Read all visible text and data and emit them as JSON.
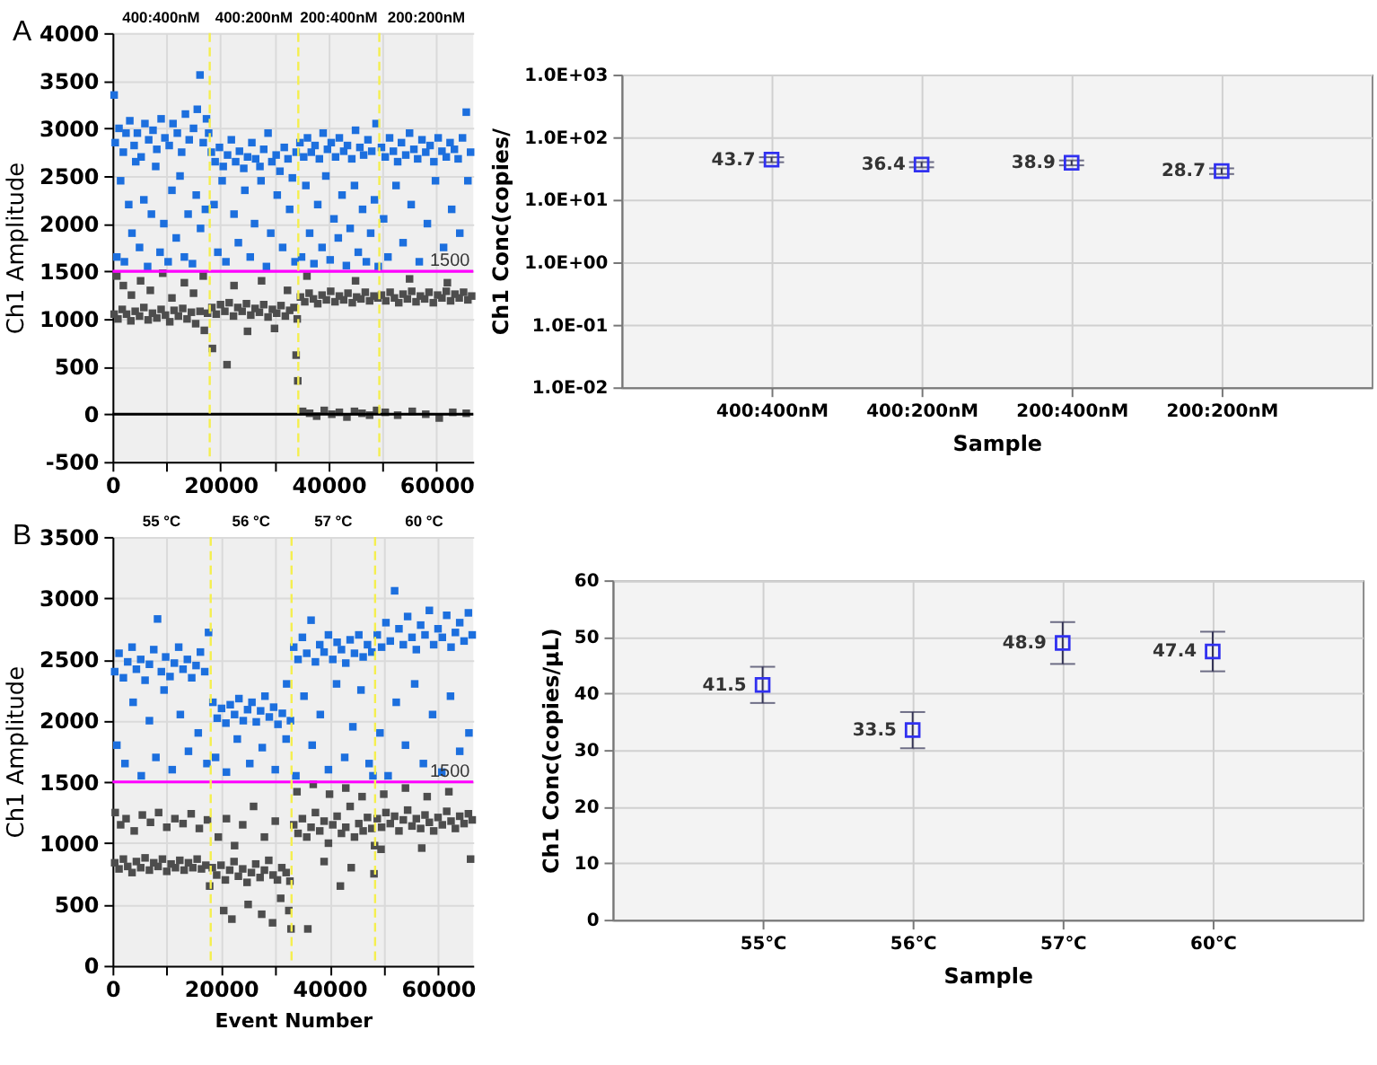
{
  "chart_data": [
    {
      "type": "scatter",
      "annotations": [
        "A",
        "400:400nM",
        "400:200nM",
        "200:400nM",
        "200:200nM"
      ],
      "ylabel": "Ch1 Amplitude",
      "xlim": [
        0,
        66800
      ],
      "xticks": [
        0,
        {
          "value": 10000,
          "label": null
        },
        20000,
        {
          "value": 30000,
          "label": null
        },
        40000,
        {
          "value": 50000,
          "label": null
        },
        60000
      ],
      "ylim": [
        -500,
        4000
      ],
      "yticks": [
        -500,
        0,
        500,
        1000,
        1500,
        2000,
        2500,
        3000,
        3500,
        4000
      ],
      "grid": true,
      "marker": "square",
      "ref_lines": [
        {
          "axis": "y",
          "value": 0,
          "color": "#000000"
        },
        {
          "axis": "y",
          "value": 1500,
          "label": "1500",
          "color": "#ff00ff"
        },
        {
          "axis": "x",
          "value": 18000,
          "color": "#f5ef4e",
          "line_style": "dashed"
        },
        {
          "axis": "x",
          "value": 34400,
          "color": "#f5ef4e",
          "line_style": "dashed"
        },
        {
          "axis": "x",
          "value": 49400,
          "color": "#f5ef4e",
          "line_style": "dashed"
        }
      ],
      "series": [
        {
          "color": "#1c6fde",
          "x": [
            300,
            500,
            1200,
            2000,
            2500,
            3200,
            4000,
            4600,
            5300,
            6000,
            6700,
            7500,
            8200,
            9000,
            9700,
            10500,
            11200,
            12000,
            12800,
            13500,
            14200,
            15000,
            15700,
            16200,
            16800,
            17400,
            17800,
            800,
            1500,
            2200,
            3000,
            3600,
            4300,
            5000,
            5800,
            6500,
            7200,
            8000,
            8800,
            9500,
            10300,
            11000,
            11800,
            12500,
            13300,
            14000,
            14800,
            15500,
            16300,
            17200,
            18300,
            19000,
            19800,
            20500,
            21300,
            22000,
            22800,
            23500,
            24300,
            25000,
            25800,
            26500,
            27300,
            28000,
            28800,
            29500,
            30300,
            31000,
            31800,
            32500,
            33300,
            34000,
            18800,
            19500,
            20300,
            21000,
            22500,
            23300,
            24500,
            25500,
            26300,
            27500,
            28500,
            29300,
            30500,
            31500,
            32800,
            33800,
            34700,
            35400,
            36100,
            36800,
            37500,
            38300,
            39000,
            39800,
            40500,
            41300,
            42000,
            42800,
            43500,
            44300,
            45000,
            45800,
            46500,
            47300,
            48000,
            48800,
            35000,
            35800,
            36500,
            37300,
            38000,
            38800,
            39500,
            40300,
            41000,
            41800,
            42500,
            43300,
            44000,
            44800,
            45500,
            46300,
            47000,
            47800,
            48500,
            49200,
            49800,
            50500,
            51300,
            52000,
            52800,
            53500,
            54300,
            55000,
            55800,
            56500,
            57300,
            58000,
            58800,
            59500,
            60300,
            61000,
            61800,
            62500,
            63300,
            64000,
            64800,
            65500,
            66300,
            50200,
            51000,
            52500,
            53800,
            55300,
            56800,
            58300,
            59800,
            61300,
            62800,
            64300,
            65800
          ],
          "values": [
            3350,
            2850,
            3000,
            2750,
            2950,
            3080,
            2820,
            2950,
            2700,
            3050,
            2880,
            2980,
            2780,
            3100,
            2900,
            2820,
            3050,
            2950,
            2750,
            3150,
            2880,
            3000,
            3200,
            3560,
            2850,
            3100,
            2950,
            1650,
            2450,
            1600,
            2200,
            1900,
            2650,
            1750,
            2250,
            1550,
            2100,
            2600,
            1700,
            2000,
            1600,
            2350,
            1850,
            2500,
            1650,
            2100,
            1580,
            2300,
            1950,
            2150,
            2750,
            2650,
            2800,
            2600,
            2720,
            2880,
            2650,
            2760,
            2580,
            2700,
            2850,
            2680,
            2600,
            2780,
            2950,
            2650,
            2720,
            2550,
            2800,
            2680,
            2480,
            2750,
            2200,
            1700,
            2450,
            1600,
            2100,
            1800,
            2350,
            1650,
            2000,
            2450,
            1550,
            1900,
            2300,
            1750,
            2150,
            1600,
            2850,
            2700,
            2900,
            2750,
            2820,
            2680,
            2950,
            2780,
            2850,
            2700,
            2900,
            2760,
            2820,
            2680,
            2980,
            2800,
            2720,
            2880,
            2760,
            3050,
            1650,
            2400,
            1900,
            1580,
            2200,
            1750,
            2500,
            1620,
            2050,
            1850,
            2300,
            1560,
            1950,
            2400,
            1700,
            2150,
            1600,
            1900,
            2250,
            1550,
            2800,
            2700,
            2900,
            2760,
            2650,
            2850,
            2720,
            2950,
            2780,
            2680,
            2880,
            2750,
            2820,
            2650,
            2900,
            2760,
            2700,
            2850,
            2780,
            2680,
            2900,
            3170,
            2750,
            2050,
            1650,
            2400,
            1800,
            2200,
            1600,
            2000,
            2450,
            1750,
            2150,
            1900,
            2450
          ]
        },
        {
          "color": "#4d4d4d",
          "x": [
            300,
            1000,
            1800,
            2600,
            3400,
            4200,
            5000,
            5800,
            6600,
            7400,
            8200,
            9000,
            9800,
            10600,
            11400,
            12200,
            13000,
            13800,
            14600,
            15400,
            16200,
            17000,
            17600,
            800,
            2000,
            3500,
            5200,
            7000,
            9300,
            11000,
            13300,
            15000,
            16800,
            18400,
            19200,
            20000,
            20800,
            21600,
            22400,
            23200,
            24000,
            24800,
            25600,
            26400,
            27200,
            28000,
            28800,
            29600,
            30400,
            31200,
            32000,
            32800,
            33600,
            34200,
            18500,
            21200,
            22500,
            25000,
            27600,
            30000,
            32400,
            34000,
            34300,
            34800,
            35600,
            36400,
            37200,
            38000,
            38800,
            39600,
            40400,
            41200,
            42000,
            42800,
            43600,
            44400,
            45200,
            46000,
            46800,
            47600,
            48400,
            49100,
            35200,
            36500,
            37800,
            39200,
            40600,
            42000,
            43400,
            44800,
            46200,
            47600,
            48900,
            49800,
            50600,
            51400,
            52200,
            53000,
            53800,
            54600,
            55400,
            56200,
            57000,
            57800,
            58600,
            59400,
            60200,
            61000,
            61800,
            62600,
            63400,
            64200,
            65000,
            65800,
            66500,
            50500,
            52800,
            55500,
            58000,
            60500,
            63000,
            65500,
            36000,
            45000,
            55000,
            62000
          ],
          "values": [
            1050,
            1000,
            1100,
            1050,
            980,
            1080,
            1030,
            1120,
            990,
            1060,
            1010,
            1100,
            1040,
            970,
            1090,
            1030,
            1110,
            1000,
            1070,
            950,
            1080,
            880,
            1060,
            1450,
            1350,
            1250,
            1400,
            1300,
            1480,
            1220,
            1380,
            1270,
            1450,
            1120,
            1050,
            1150,
            1080,
            1170,
            1030,
            1120,
            1080,
            1160,
            1040,
            1110,
            1070,
            1150,
            1020,
            1100,
            1060,
            1140,
            1030,
            1090,
            1120,
            1000,
            690,
            520,
            1350,
            870,
            1400,
            900,
            1300,
            620,
            350,
            1230,
            1180,
            1270,
            1210,
            1160,
            1250,
            1200,
            1290,
            1180,
            1240,
            1200,
            1270,
            1170,
            1230,
            1210,
            1280,
            1190,
            1240,
            1220,
            30,
            10,
            -20,
            40,
            0,
            20,
            -30,
            30,
            10,
            -10,
            40,
            1250,
            1190,
            1280,
            1220,
            1170,
            1260,
            1210,
            1290,
            1180,
            1240,
            1210,
            1280,
            1170,
            1250,
            1220,
            1290,
            1190,
            1260,
            1220,
            1280,
            1200,
            1240,
            20,
            -10,
            30,
            0,
            -40,
            20,
            10,
            1450,
            1400,
            1420,
            1380
          ]
        }
      ]
    },
    {
      "type": "scatter",
      "categories": [
        "400:400nM",
        "400:200nM",
        "200:400nM",
        "200:200nM"
      ],
      "xlabel": "Sample",
      "ylabel": "Ch1 Conc(copies/",
      "log": true,
      "ylim": [
        0.01,
        1000
      ],
      "yticks": [
        {
          "value": 0.01,
          "label": "1.0E-02"
        },
        {
          "value": 0.1,
          "label": "1.0E-01"
        },
        {
          "value": 1,
          "label": "1.0E+00"
        },
        {
          "value": 10,
          "label": "1.0E+01"
        },
        {
          "value": 100,
          "label": "1.0E+02"
        },
        {
          "value": 1000,
          "label": "1.0E+03"
        }
      ],
      "grid": true,
      "marker": "square",
      "data_labels": true,
      "series": [
        {
          "color": "#3030f0",
          "values": [
            43.7,
            36.4,
            38.9,
            28.7
          ],
          "errors": [
            4,
            3.5,
            3.5,
            3
          ]
        }
      ]
    },
    {
      "type": "scatter",
      "annotations": [
        "B",
        "55 °C",
        "56 °C",
        "57 °C",
        "60 °C"
      ],
      "xlabel": "Event Number",
      "ylabel": "Ch1 Amplitude",
      "xlim": [
        0,
        66500
      ],
      "xticks": [
        0,
        {
          "value": 10000,
          "label": null
        },
        20000,
        {
          "value": 30000,
          "label": null
        },
        40000,
        {
          "value": 50000,
          "label": null
        },
        60000
      ],
      "ylim": [
        0,
        3500
      ],
      "yticks": [
        0,
        500,
        1000,
        1500,
        2000,
        2500,
        3000,
        3500
      ],
      "grid": true,
      "marker": "square",
      "ref_lines": [
        {
          "axis": "y",
          "value": 1500,
          "label": "1500",
          "color": "#ff00ff"
        },
        {
          "axis": "x",
          "value": 18100,
          "color": "#f5ef4e",
          "line_style": "dashed"
        },
        {
          "axis": "x",
          "value": 33000,
          "color": "#f5ef4e",
          "line_style": "dashed"
        },
        {
          "axis": "x",
          "value": 48400,
          "color": "#f5ef4e",
          "line_style": "dashed"
        }
      ],
      "series": [
        {
          "color": "#1c6fde",
          "x": [
            400,
            1200,
            2000,
            2800,
            3600,
            4400,
            5200,
            6000,
            6800,
            7600,
            8300,
            9000,
            9800,
            10600,
            11400,
            12200,
            13000,
            13800,
            14600,
            15400,
            16200,
            17000,
            17700,
            800,
            2300,
            3800,
            5300,
            6800,
            8000,
            9500,
            11000,
            12500,
            14000,
            15800,
            17400,
            18500,
            19300,
            20100,
            20900,
            21700,
            22500,
            23300,
            24100,
            24900,
            25700,
            26500,
            27300,
            28100,
            28900,
            29700,
            30500,
            31300,
            32100,
            32800,
            19000,
            21000,
            23000,
            25300,
            27600,
            30000,
            32000,
            33400,
            34200,
            35000,
            35800,
            36600,
            37400,
            38200,
            39000,
            39800,
            40600,
            41400,
            42200,
            43000,
            43800,
            44600,
            45400,
            46200,
            47000,
            47800,
            33800,
            35300,
            36800,
            38300,
            39800,
            41300,
            42800,
            44300,
            45800,
            47300,
            48000,
            48800,
            49600,
            50400,
            51200,
            52000,
            52800,
            53600,
            54400,
            55200,
            56000,
            56800,
            57600,
            58400,
            59200,
            60000,
            60800,
            61600,
            62400,
            63200,
            64000,
            64800,
            65600,
            66300,
            49300,
            50800,
            52300,
            54000,
            55700,
            57300,
            59000,
            60700,
            62300,
            64000,
            65700
          ],
          "values": [
            2400,
            2550,
            2350,
            2480,
            2600,
            2420,
            2500,
            2330,
            2460,
            2580,
            2830,
            2400,
            2520,
            2360,
            2470,
            2600,
            2420,
            2500,
            2350,
            2450,
            2560,
            2400,
            2720,
            1800,
            1650,
            2150,
            1550,
            2000,
            1700,
            2250,
            1600,
            2050,
            1750,
            1900,
            1650,
            2150,
            2020,
            2100,
            1980,
            2130,
            2050,
            2180,
            2000,
            2090,
            2150,
            1990,
            2080,
            2200,
            2030,
            2110,
            1970,
            2060,
            2300,
            2000,
            1700,
            1580,
            1850,
            1650,
            1780,
            1600,
            1850,
            2600,
            2500,
            2680,
            2550,
            2820,
            2480,
            2620,
            2560,
            2700,
            2500,
            2640,
            2580,
            2470,
            2660,
            2550,
            2700,
            2520,
            2620,
            2560,
            1550,
            2200,
            1800,
            2050,
            1600,
            2300,
            1700,
            1950,
            2250,
            1650,
            1550,
            2700,
            2600,
            2800,
            2650,
            3060,
            2750,
            2620,
            2850,
            2680,
            2580,
            2780,
            2700,
            2900,
            2620,
            2750,
            2680,
            2860,
            2600,
            2720,
            2800,
            2650,
            2880,
            2700,
            1900,
            1550,
            2150,
            1800,
            2300,
            1650,
            2050,
            1580,
            2200,
            1750,
            1900
          ]
        },
        {
          "color": "#4d4d4d",
          "x": [
            400,
            1200,
            2000,
            2800,
            3600,
            4400,
            5200,
            6000,
            6800,
            7600,
            8400,
            9200,
            10000,
            10800,
            11600,
            12400,
            13200,
            14000,
            14800,
            15600,
            16400,
            17200,
            17900,
            500,
            1500,
            2500,
            4000,
            5500,
            7000,
            8500,
            10000,
            11500,
            13000,
            14500,
            16000,
            17500,
            18400,
            19200,
            20000,
            20800,
            21600,
            22400,
            23200,
            24000,
            24800,
            25600,
            26400,
            27200,
            28000,
            28800,
            29600,
            30400,
            31200,
            32000,
            32700,
            19500,
            21000,
            22500,
            24000,
            26000,
            28000,
            30000,
            20500,
            22000,
            25000,
            27500,
            29500,
            31000,
            32500,
            32900,
            36000,
            33400,
            34200,
            35000,
            35800,
            36600,
            37400,
            38200,
            39000,
            39800,
            40600,
            41400,
            42200,
            43000,
            43800,
            44600,
            45400,
            46200,
            47000,
            47800,
            48300,
            34000,
            37000,
            40000,
            43000,
            46000,
            39000,
            44000,
            42000,
            48200,
            48800,
            49600,
            50400,
            51200,
            52000,
            52800,
            53600,
            54400,
            55200,
            56000,
            56800,
            57600,
            58400,
            59200,
            60000,
            60800,
            61600,
            62400,
            63200,
            64000,
            64800,
            65600,
            66300,
            50000,
            54000,
            58000,
            62000,
            66000,
            49500,
            57000
          ],
          "values": [
            840,
            790,
            870,
            810,
            760,
            850,
            800,
            880,
            780,
            840,
            810,
            870,
            770,
            830,
            800,
            860,
            780,
            840,
            800,
            870,
            790,
            820,
            650,
            1250,
            1150,
            1200,
            1100,
            1230,
            1170,
            1250,
            1130,
            1200,
            1160,
            1240,
            1120,
            1190,
            800,
            740,
            820,
            700,
            780,
            850,
            730,
            790,
            680,
            760,
            830,
            720,
            780,
            860,
            740,
            700,
            800,
            760,
            690,
            1050,
            1200,
            980,
            1150,
            1300,
            1050,
            1180,
            450,
            380,
            500,
            420,
            350,
            550,
            450,
            300,
            300,
            1150,
            1080,
            1200,
            1050,
            1130,
            1250,
            1100,
            1180,
            1000,
            1150,
            1220,
            1080,
            1130,
            1300,
            1050,
            1160,
            1100,
            1210,
            1120,
            980,
            1420,
            1480,
            1400,
            1450,
            1380,
            850,
            800,
            650,
            750,
            1200,
            1130,
            1250,
            1160,
            1220,
            1100,
            1190,
            1270,
            1140,
            1200,
            1120,
            1230,
            1170,
            1100,
            1210,
            1150,
            1260,
            1180,
            1120,
            1220,
            1160,
            1240,
            1190,
            1400,
            1450,
            1380,
            1420,
            870,
            950,
            960
          ]
        }
      ]
    },
    {
      "type": "scatter",
      "categories": [
        "55℃",
        "56℃",
        "57℃",
        "60℃"
      ],
      "xlabel": "Sample",
      "ylabel": "Ch1 Conc(copies/μL)",
      "ylim": [
        0,
        60
      ],
      "yticks": [
        0,
        10,
        20,
        30,
        40,
        50,
        60
      ],
      "grid": true,
      "marker": "square",
      "data_labels": true,
      "series": [
        {
          "color": "#3030f0",
          "values": [
            41.5,
            33.5,
            48.9,
            47.4
          ],
          "errors": [
            3.2,
            3.2,
            3.7,
            3.5
          ]
        }
      ]
    }
  ]
}
